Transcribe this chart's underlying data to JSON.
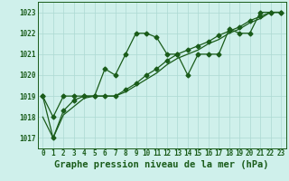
{
  "bg_color": "#cff0eb",
  "grid_color": "#acd8d2",
  "line_color": "#1a5c1a",
  "line1_x": [
    0,
    1,
    2,
    3,
    4,
    5,
    6,
    7,
    8,
    9,
    10,
    11,
    12,
    13,
    14,
    15,
    16,
    17,
    18,
    19,
    20,
    21,
    22,
    23
  ],
  "line1_y": [
    1019.0,
    1018.0,
    1019.0,
    1019.0,
    1019.0,
    1019.0,
    1020.3,
    1020.0,
    1021.0,
    1022.0,
    1022.0,
    1021.8,
    1021.0,
    1021.0,
    1020.0,
    1021.0,
    1021.0,
    1021.0,
    1022.2,
    1022.0,
    1022.0,
    1023.0,
    1023.0,
    1023.0
  ],
  "line2_x": [
    0,
    1,
    2,
    3,
    4,
    5,
    6,
    7,
    8,
    9,
    10,
    11,
    12,
    13,
    14,
    15,
    16,
    17,
    18,
    19,
    20,
    21,
    22,
    23
  ],
  "line2_y": [
    1019.0,
    1017.0,
    1018.3,
    1018.8,
    1019.0,
    1019.0,
    1019.0,
    1019.0,
    1019.3,
    1019.6,
    1020.0,
    1020.3,
    1020.7,
    1021.0,
    1021.2,
    1021.4,
    1021.6,
    1021.9,
    1022.1,
    1022.3,
    1022.6,
    1022.8,
    1023.0,
    1023.0
  ],
  "line3_x": [
    0,
    1,
    2,
    3,
    4,
    5,
    6,
    7,
    8,
    9,
    10,
    11,
    12,
    13,
    14,
    15,
    16,
    17,
    18,
    19,
    20,
    21,
    22,
    23
  ],
  "line3_y": [
    1018.0,
    1017.0,
    1018.1,
    1018.5,
    1018.9,
    1019.0,
    1019.0,
    1019.0,
    1019.2,
    1019.5,
    1019.8,
    1020.1,
    1020.5,
    1020.8,
    1021.0,
    1021.2,
    1021.5,
    1021.7,
    1022.0,
    1022.2,
    1022.5,
    1022.7,
    1023.0,
    1023.0
  ],
  "ylim": [
    1016.5,
    1023.5
  ],
  "yticks": [
    1017,
    1018,
    1019,
    1020,
    1021,
    1022,
    1023
  ],
  "xticks": [
    0,
    1,
    2,
    3,
    4,
    5,
    6,
    7,
    8,
    9,
    10,
    11,
    12,
    13,
    14,
    15,
    16,
    17,
    18,
    19,
    20,
    21,
    22,
    23
  ],
  "xlabel": "Graphe pression niveau de la mer (hPa)",
  "tick_fontsize": 5.5,
  "xlabel_fontsize": 7.5
}
